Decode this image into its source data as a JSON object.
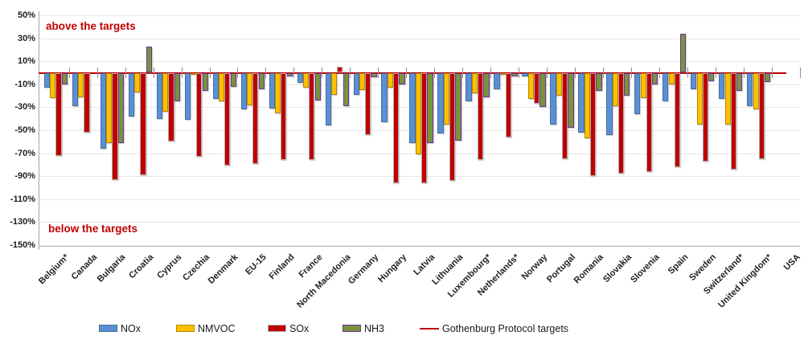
{
  "chart_data": {
    "type": "bar",
    "title": "",
    "xlabel": "",
    "ylabel": "",
    "ylim": [
      -150,
      50
    ],
    "ytick_step": 20,
    "ytick_format": "percent",
    "grid": true,
    "legend_position": "bottom",
    "annotations": {
      "above": "above the targets",
      "below": "below the targets"
    },
    "categories": [
      "Belgium*",
      "Canada",
      "Bulgaria",
      "Croatia",
      "Cyprus",
      "Czechia",
      "Denmark",
      "EU-15",
      "Finland",
      "France",
      "North Macedonia",
      "Germany",
      "Hungary",
      "Latvia",
      "Lithuania",
      "Luxembourg*",
      "Netherlands*",
      "Norway",
      "Portugal",
      "Romania",
      "Slovakia",
      "Slovenia",
      "Spain",
      "Sweden",
      "Switzerland*",
      "United Kingdom*",
      "USA"
    ],
    "series": [
      {
        "name": "NOx",
        "color": "#5b8fd5",
        "border": "#41719c",
        "values": [
          -13,
          -29,
          -66,
          -38,
          -40,
          -41,
          -23,
          -32,
          -31,
          -9,
          -46,
          -19,
          -43,
          -61,
          -53,
          -25,
          -14,
          -3,
          -45,
          -52,
          -54,
          -36,
          -25,
          -14,
          -23,
          -29,
          null
        ]
      },
      {
        "name": "NMVOC",
        "color": "#ffc000",
        "border": "#b38600",
        "values": [
          -22,
          -21,
          -61,
          -17,
          -34,
          -2,
          -25,
          -28,
          -35,
          -13,
          -19,
          -15,
          -13,
          -71,
          -45,
          -18,
          -2,
          -23,
          -20,
          -57,
          -29,
          -22,
          -10,
          -45,
          -45,
          -32,
          null
        ]
      },
      {
        "name": "SOx",
        "color": "#c00000",
        "border": "#b0b0b0",
        "values": [
          -72,
          -52,
          -93,
          -89,
          -60,
          -73,
          -81,
          -79,
          -76,
          -76,
          5,
          -54,
          -96,
          -96,
          -94,
          -76,
          -56,
          -27,
          -75,
          -90,
          -88,
          -86,
          -82,
          -77,
          -84,
          -75,
          null
        ]
      },
      {
        "name": "NH3",
        "color": "#77933c",
        "border": "#7030a0",
        "values": [
          -10,
          null,
          -61,
          23,
          -25,
          -16,
          -12,
          -14,
          -3,
          -24,
          -29,
          -4,
          -10,
          -61,
          -59,
          -21,
          -3,
          -30,
          -48,
          -16,
          -20,
          -10,
          34,
          -7,
          -16,
          -8,
          null
        ]
      }
    ],
    "target_line": {
      "label": "Gothenburg Protocol targets",
      "value": 0,
      "color": "#c00000"
    }
  }
}
